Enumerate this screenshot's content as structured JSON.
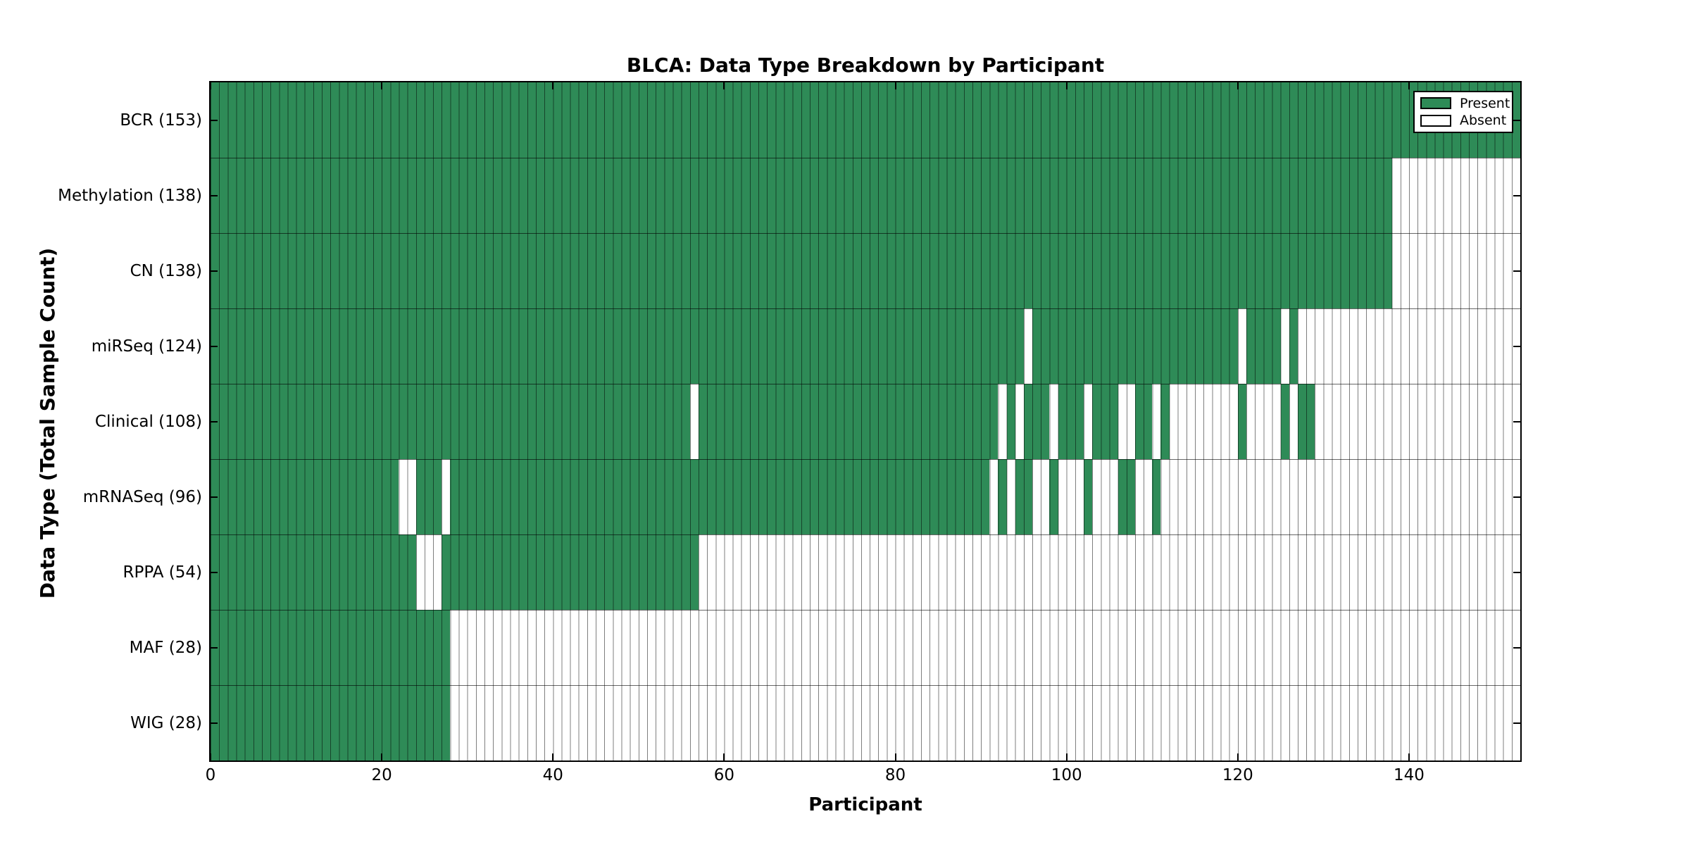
{
  "figure": {
    "title": "BLCA: Data Type Breakdown by Participant",
    "xlabel": "Participant",
    "ylabel": "Data Type (Total Sample Count)"
  },
  "legend": {
    "entries": [
      {
        "label": "Present",
        "color": "#2E8B57"
      },
      {
        "label": "Absent",
        "color": "#FFFFFF"
      }
    ]
  },
  "chart_data": {
    "type": "heatmap",
    "title": "BLCA: Data Type Breakdown by Participant",
    "xlabel": "Participant",
    "ylabel": "Data Type (Total Sample Count)",
    "legend_position": "upper right",
    "present_color": "#2E8B57",
    "absent_color": "#FFFFFF",
    "n_participants": 153,
    "x_range": [
      0,
      153
    ],
    "x_ticks": [
      0,
      20,
      40,
      60,
      80,
      100,
      120,
      140
    ],
    "rows": [
      {
        "name": "BCR",
        "total": 153,
        "label": "BCR (153)",
        "present_ranges": [
          [
            0,
            152
          ]
        ]
      },
      {
        "name": "Methylation",
        "total": 138,
        "label": "Methylation (138)",
        "present_ranges": [
          [
            0,
            137
          ]
        ]
      },
      {
        "name": "CN",
        "total": 138,
        "label": "CN (138)",
        "present_ranges": [
          [
            0,
            137
          ]
        ]
      },
      {
        "name": "miRSeq",
        "total": 124,
        "label": "miRSeq (124)",
        "present_ranges": [
          [
            0,
            94
          ],
          [
            96,
            119
          ],
          [
            121,
            124
          ],
          [
            126,
            126
          ]
        ]
      },
      {
        "name": "Clinical",
        "total": 108,
        "label": "Clinical (108)",
        "present_ranges": [
          [
            0,
            55
          ],
          [
            57,
            91
          ],
          [
            93,
            93
          ],
          [
            95,
            97
          ],
          [
            99,
            101
          ],
          [
            103,
            105
          ],
          [
            108,
            109
          ],
          [
            111,
            111
          ],
          [
            120,
            120
          ],
          [
            125,
            125
          ],
          [
            127,
            128
          ]
        ]
      },
      {
        "name": "mRNASeq",
        "total": 96,
        "label": "mRNASeq (96)",
        "present_ranges": [
          [
            0,
            21
          ],
          [
            24,
            26
          ],
          [
            28,
            90
          ],
          [
            92,
            92
          ],
          [
            94,
            95
          ],
          [
            98,
            98
          ],
          [
            102,
            102
          ],
          [
            106,
            107
          ],
          [
            110,
            110
          ]
        ]
      },
      {
        "name": "RPPA",
        "total": 54,
        "label": "RPPA (54)",
        "present_ranges": [
          [
            0,
            23
          ],
          [
            27,
            56
          ]
        ]
      },
      {
        "name": "MAF",
        "total": 28,
        "label": "MAF (28)",
        "present_ranges": [
          [
            0,
            27
          ]
        ]
      },
      {
        "name": "WIG",
        "total": 28,
        "label": "WIG (28)",
        "present_ranges": [
          [
            0,
            27
          ]
        ]
      }
    ]
  }
}
